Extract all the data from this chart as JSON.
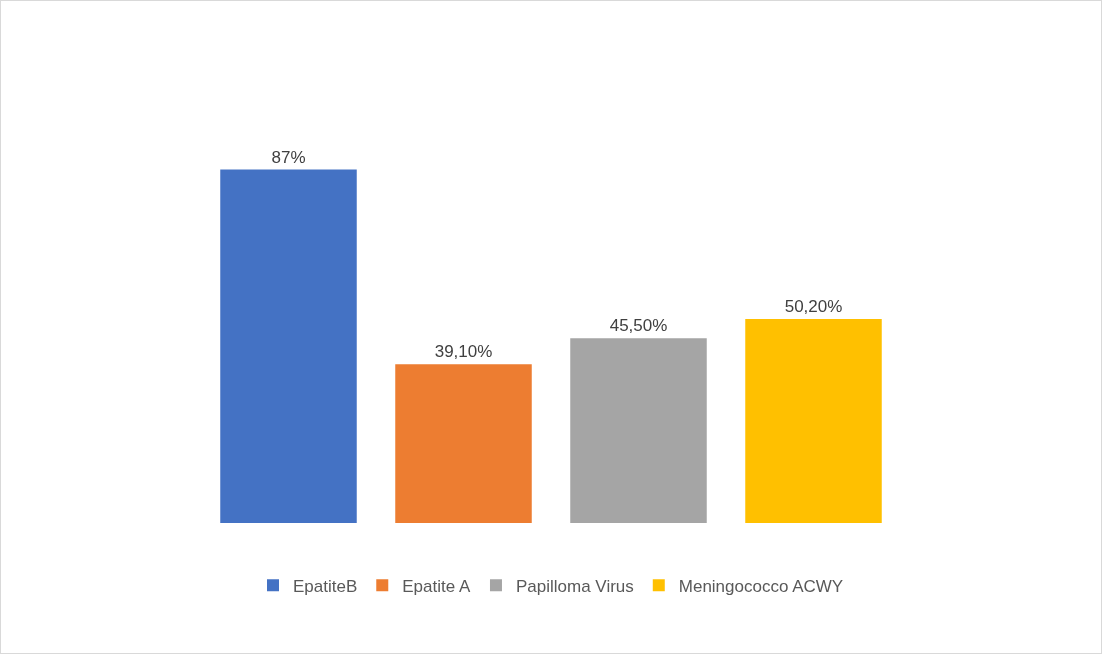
{
  "chart_data": {
    "type": "bar",
    "categories": [
      null
    ],
    "series": [
      {
        "name": "EpatiteB",
        "color": "#4472c4",
        "values": [
          87
        ],
        "value_labels": [
          "87%"
        ]
      },
      {
        "name": "Epatite A",
        "color": "#ed7d31",
        "values": [
          39.1
        ],
        "value_labels": [
          "39,10%"
        ]
      },
      {
        "name": "Papilloma Virus",
        "color": "#a5a5a5",
        "values": [
          45.5
        ],
        "value_labels": [
          "45,50%"
        ]
      },
      {
        "name": "Meningococco ACWY",
        "color": "#ffc000",
        "values": [
          50.2
        ],
        "value_labels": [
          "50,20%"
        ]
      }
    ],
    "legend": "bottom"
  }
}
